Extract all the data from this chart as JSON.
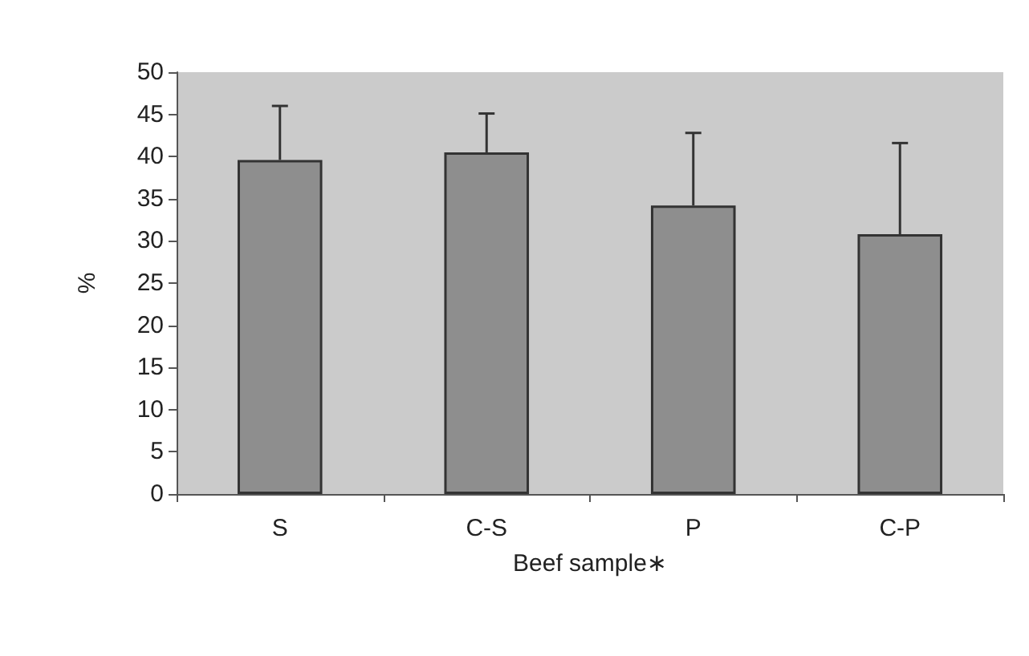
{
  "chart_data": {
    "type": "bar",
    "xlabel": "Beef sample∗",
    "ylabel": "%",
    "categories": [
      "S",
      "C-S",
      "P",
      "C-P"
    ],
    "values": [
      39.6,
      40.5,
      34.2,
      30.8
    ],
    "errors": [
      [
        39.6,
        46
      ],
      [
        40.5,
        45.1
      ],
      [
        34.2,
        42.8
      ],
      [
        30.8,
        41.6
      ]
    ],
    "color": "#8e8e8e",
    "ylim": [
      0,
      50
    ],
    "yticks": [
      0,
      5,
      10,
      15,
      20,
      25,
      30,
      35,
      40,
      45,
      50
    ],
    "grid": false
  }
}
